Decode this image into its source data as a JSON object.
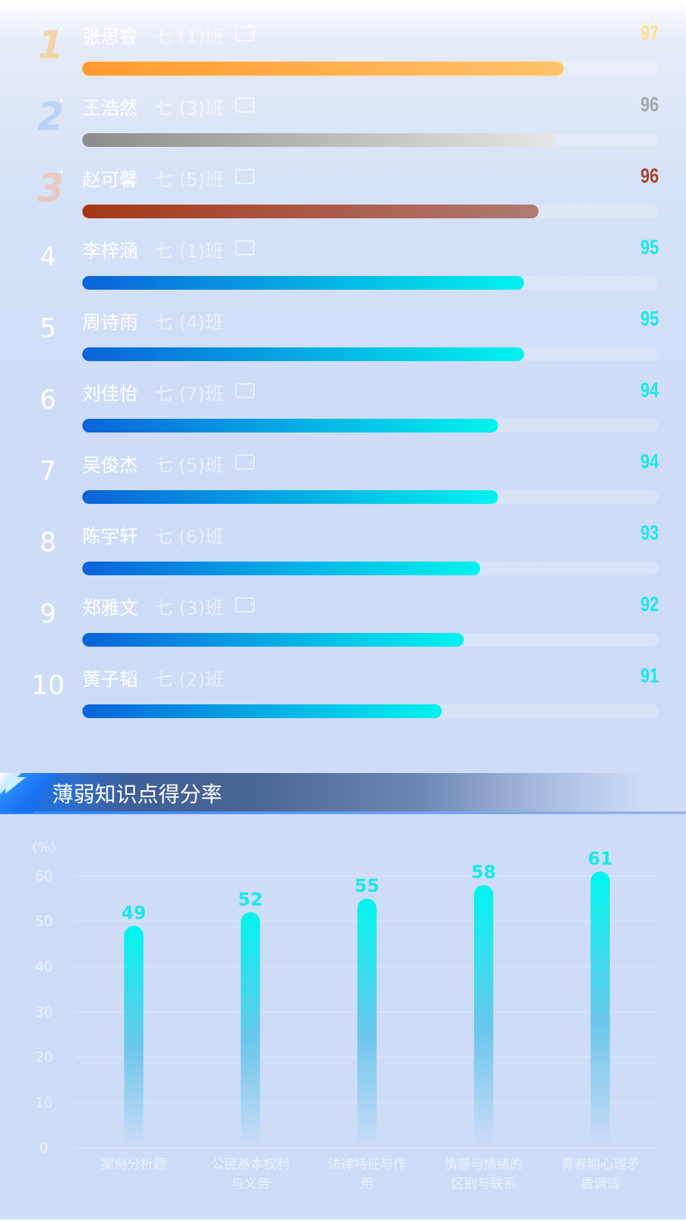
{
  "ranking": [
    {
      "rank": "1",
      "name": "张思睿",
      "class": "七 (1)班",
      "score": 97,
      "tablet": true,
      "tier": "gold",
      "fill": 0.834
    },
    {
      "rank": "2",
      "name": "王浩然",
      "class": "七 (3)班",
      "score": 96,
      "tablet": true,
      "tier": "silver",
      "fill": 0.821
    },
    {
      "rank": "3",
      "name": "赵可馨",
      "class": "七 (5)班",
      "score": 96,
      "tablet": true,
      "tier": "bronze",
      "fill": 0.792
    },
    {
      "rank": "4",
      "name": "李梓涵",
      "class": "七 (1)班",
      "score": 95,
      "tablet": true,
      "tier": "blue",
      "fill": 0.767
    },
    {
      "rank": "5",
      "name": "周诗雨",
      "class": "七 (4)班",
      "score": 95,
      "tablet": false,
      "tier": "blue",
      "fill": 0.767
    },
    {
      "rank": "6",
      "name": "刘佳怡",
      "class": "七 (7)班",
      "score": 94,
      "tablet": true,
      "tier": "blue",
      "fill": 0.721
    },
    {
      "rank": "7",
      "name": "吴俊杰",
      "class": "七 (5)班",
      "score": 94,
      "tablet": true,
      "tier": "blue",
      "fill": 0.721
    },
    {
      "rank": "8",
      "name": "陈宇轩",
      "class": "七 (6)班",
      "score": 93,
      "tablet": false,
      "tier": "blue",
      "fill": 0.69
    },
    {
      "rank": "9",
      "name": "郑雅文",
      "class": "七 (3)班",
      "score": 92,
      "tablet": true,
      "tier": "blue",
      "fill": 0.662
    },
    {
      "rank": "10",
      "name": "黄子韬",
      "class": "七 (2)班",
      "score": 91,
      "tablet": false,
      "tier": "blue",
      "fill": 0.624
    }
  ],
  "colors": {
    "gold_score": "#ffe089",
    "silver_score": "#a6a6a6",
    "bronze_score": "#a8442b",
    "blue_score": "#18e8e8",
    "bar_top": "#00f5ee",
    "bar_bottom": "#cddcf7",
    "value_label": "#18e8e8"
  },
  "section": {
    "title": "薄弱知识点得分率"
  },
  "chart_data": {
    "type": "bar",
    "ylabel": "(%)",
    "ylim": [
      0,
      60
    ],
    "yticks": [
      0,
      10,
      20,
      30,
      40,
      50,
      60
    ],
    "grid": true,
    "categories": [
      [
        "案例分析题"
      ],
      [
        "公民基本权利",
        "与义务"
      ],
      [
        "法律特征与作",
        "用"
      ],
      [
        "情感与情绪的",
        "区别与联系"
      ],
      [
        "青春期心理矛",
        "盾调适"
      ]
    ],
    "values": [
      49,
      52,
      55,
      58,
      61
    ]
  }
}
